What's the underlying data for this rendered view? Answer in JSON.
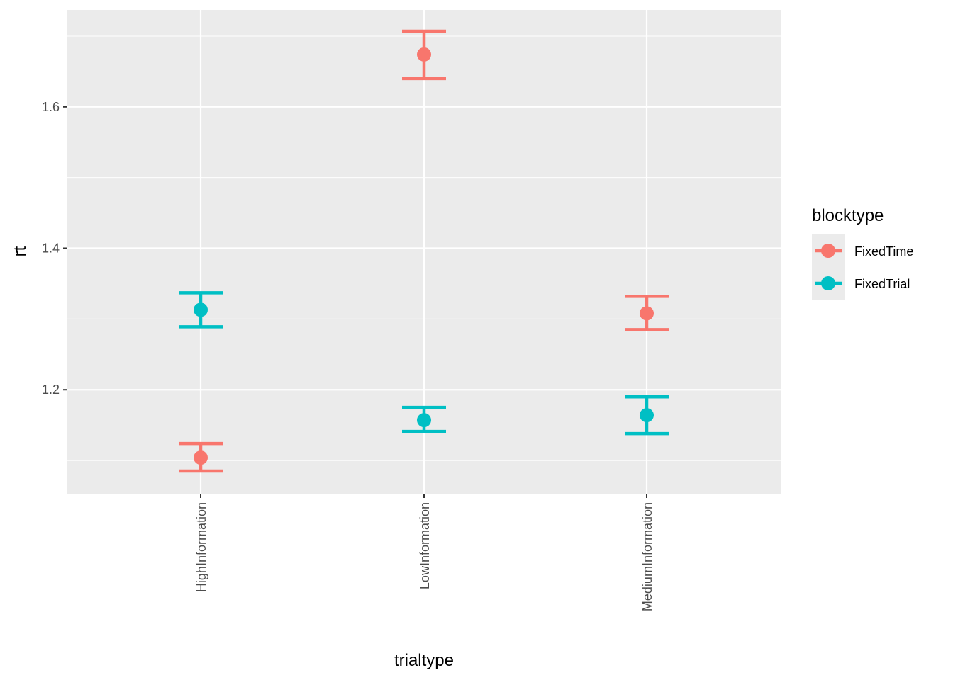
{
  "chart_data": {
    "type": "errorbar-point",
    "title": "",
    "xlabel": "trialtype",
    "ylabel": "rt",
    "categories": [
      "HighInformation",
      "LowInformation",
      "MediumInformation"
    ],
    "ylim": [
      1.053,
      1.737
    ],
    "yticks": [
      1.2,
      1.4,
      1.6
    ],
    "ytick_labels": [
      "1.2",
      "1.4",
      "1.6"
    ],
    "grid": true,
    "legend": {
      "title": "blocktype",
      "position": "right"
    },
    "series": [
      {
        "name": "FixedTime",
        "color": "#F8766D",
        "points": [
          {
            "category": "HighInformation",
            "y": 1.104,
            "ymin": 1.085,
            "ymax": 1.124
          },
          {
            "category": "LowInformation",
            "y": 1.674,
            "ymin": 1.64,
            "ymax": 1.707
          },
          {
            "category": "MediumInformation",
            "y": 1.308,
            "ymin": 1.285,
            "ymax": 1.332
          }
        ]
      },
      {
        "name": "FixedTrial",
        "color": "#00BFC4",
        "points": [
          {
            "category": "HighInformation",
            "y": 1.313,
            "ymin": 1.289,
            "ymax": 1.337
          },
          {
            "category": "LowInformation",
            "y": 1.157,
            "ymin": 1.141,
            "ymax": 1.175
          },
          {
            "category": "MediumInformation",
            "y": 1.164,
            "ymin": 1.138,
            "ymax": 1.19
          }
        ]
      }
    ]
  }
}
